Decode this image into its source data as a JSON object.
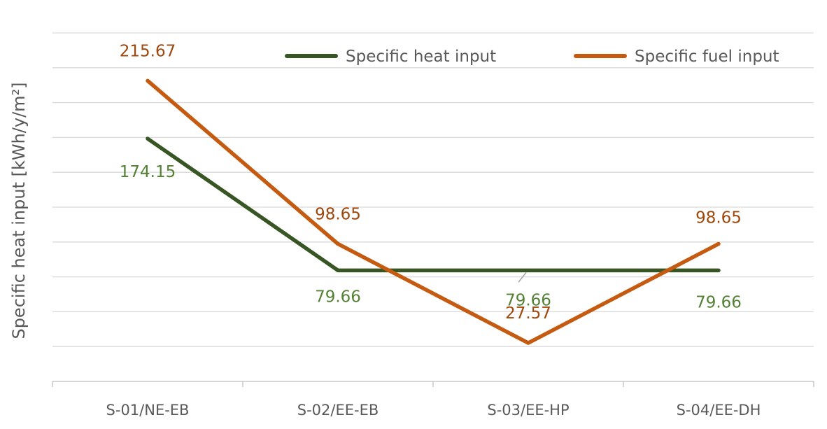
{
  "chart_data": {
    "type": "line",
    "title": "",
    "xlabel": "",
    "ylabel": "Specific heat input [kWh/y/m²]",
    "categories": [
      "S-01/NE-EB",
      "S-02/EE-EB",
      "S-03/EE-HP",
      "S-04/EE-DH"
    ],
    "ylim": [
      0,
      250
    ],
    "grid": true,
    "legend_position": "top-right",
    "series": [
      {
        "name": "Specific heat input",
        "color": "#375623",
        "label_color": "#548235",
        "values": [
          174.15,
          79.66,
          79.66,
          79.66
        ],
        "labels": [
          "174.15",
          "79.66",
          "79.66",
          "79.66"
        ]
      },
      {
        "name": "Specific fuel input",
        "color": "#C55A11",
        "label_color": "#9E480E",
        "values": [
          215.67,
          98.65,
          27.57,
          98.65
        ],
        "labels": [
          "215.67",
          "98.65",
          "27.57",
          "98.65"
        ]
      }
    ]
  }
}
